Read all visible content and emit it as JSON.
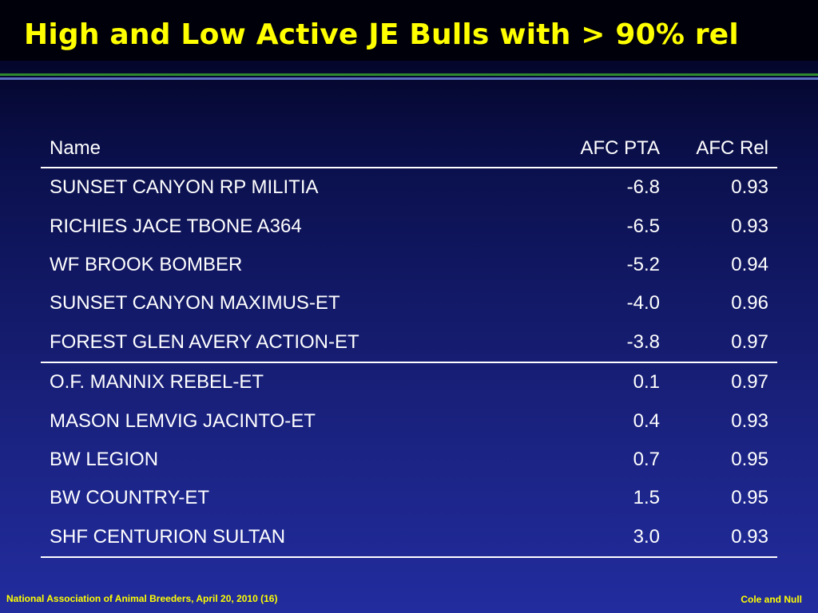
{
  "slide": {
    "title": "High and Low Active JE Bulls with > 90% rel"
  },
  "table": {
    "headers": {
      "name": "Name",
      "afc_pta": "AFC PTA",
      "afc_rel": "AFC Rel"
    },
    "rows": [
      {
        "name": "SUNSET CANYON RP MILITIA",
        "afc_pta": "-6.8",
        "afc_rel": "0.93"
      },
      {
        "name": "RICHIES JACE TBONE A364",
        "afc_pta": "-6.5",
        "afc_rel": "0.93"
      },
      {
        "name": "WF BROOK BOMBER",
        "afc_pta": "-5.2",
        "afc_rel": "0.94"
      },
      {
        "name": "SUNSET CANYON MAXIMUS-ET",
        "afc_pta": "-4.0",
        "afc_rel": "0.96"
      },
      {
        "name": "FOREST GLEN AVERY ACTION-ET",
        "afc_pta": "-3.8",
        "afc_rel": "0.97"
      },
      {
        "name": "O.F. MANNIX REBEL-ET",
        "afc_pta": "0.1",
        "afc_rel": "0.97"
      },
      {
        "name": "MASON LEMVIG JACINTO-ET",
        "afc_pta": "0.4",
        "afc_rel": "0.93"
      },
      {
        "name": "BW LEGION",
        "afc_pta": "0.7",
        "afc_rel": "0.95"
      },
      {
        "name": "BW COUNTRY-ET",
        "afc_pta": "1.5",
        "afc_rel": "0.95"
      },
      {
        "name": "SHF CENTURION SULTAN",
        "afc_pta": "3.0",
        "afc_rel": "0.93"
      }
    ]
  },
  "footer": {
    "left": "National Association of Animal Breeders, April 20, 2010 (16)",
    "right": "Cole and Null"
  },
  "colors": {
    "title": "#ffff00",
    "background_top": "#000016",
    "background_bottom": "#222c9e",
    "rule_green": "#2f8a2f",
    "rule_blue": "#5b6fc0",
    "table_text": "#ffffff",
    "footer_text": "#ffff00"
  }
}
